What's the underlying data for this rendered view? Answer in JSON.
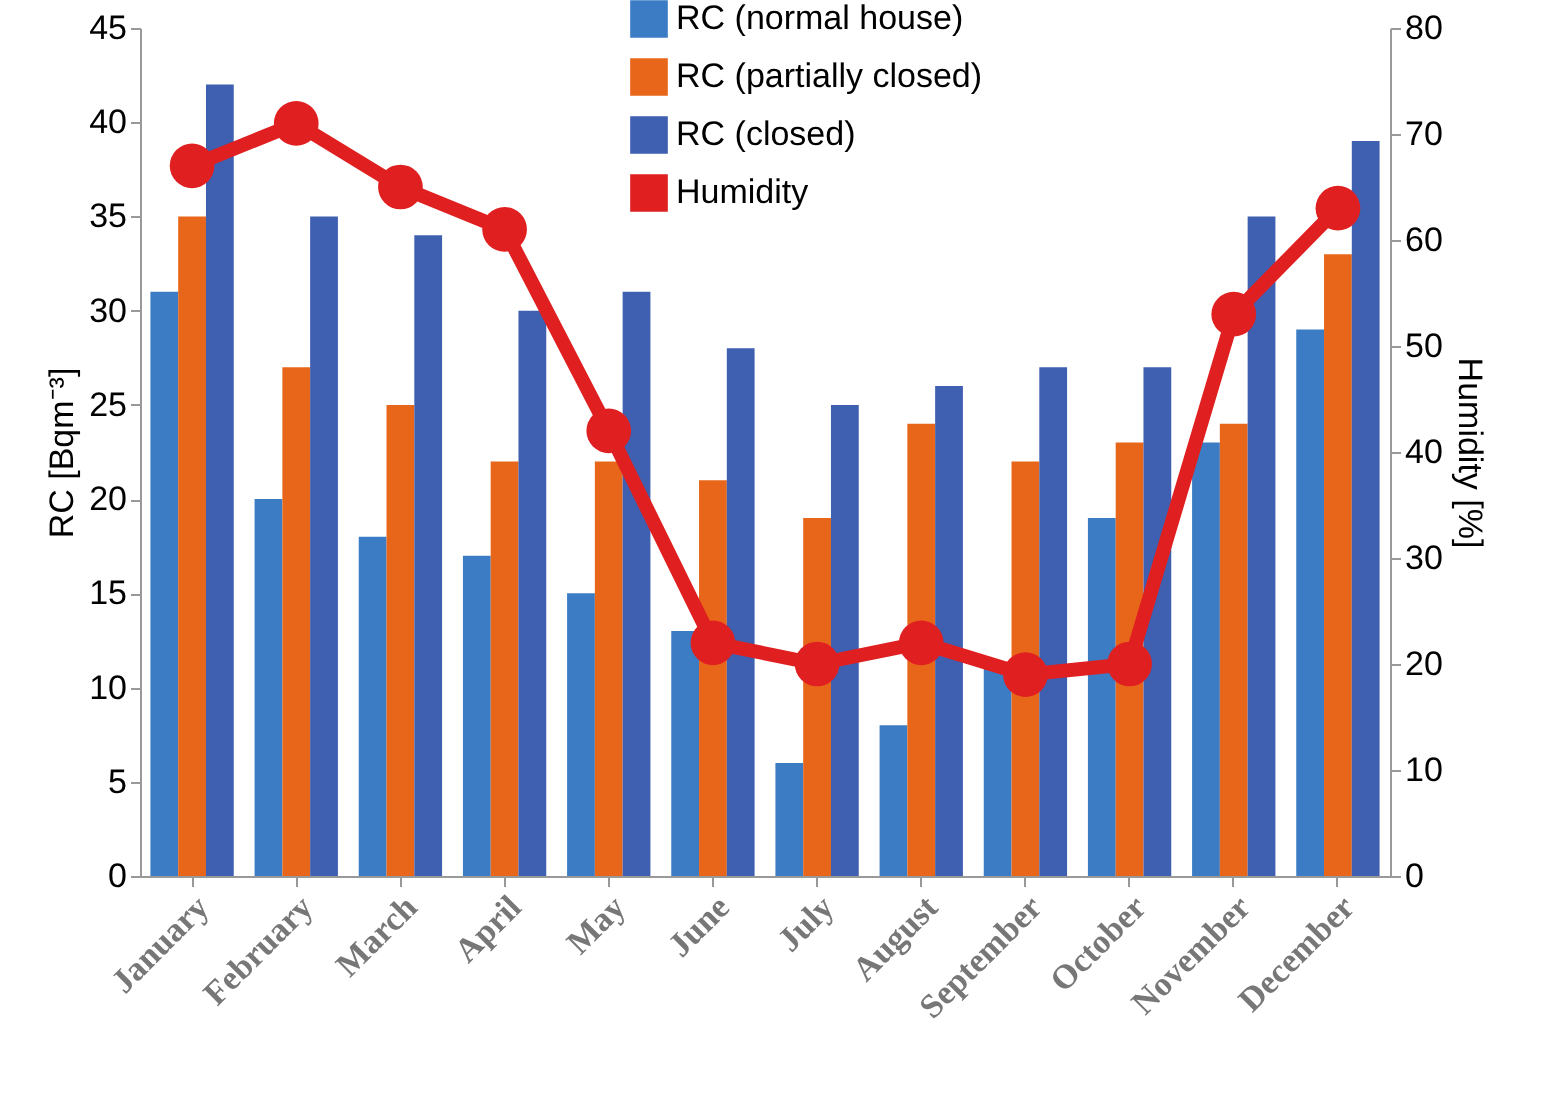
{
  "chart_data": {
    "type": "bar",
    "categories": [
      "January",
      "February",
      "March",
      "April",
      "May",
      "June",
      "July",
      "August",
      "September",
      "October",
      "November",
      "December"
    ],
    "ylabel": "RC [Bqm⁻³]",
    "y2label": "Humidity [%]",
    "ylim": [
      0,
      45
    ],
    "yticks": [
      0,
      5,
      10,
      15,
      20,
      25,
      30,
      35,
      40,
      45
    ],
    "y2lim": [
      0,
      80
    ],
    "y2ticks": [
      0,
      10,
      20,
      30,
      40,
      50,
      60,
      70,
      80
    ],
    "legend": "top",
    "grid": false,
    "marker": "circle",
    "series": [
      {
        "name": "RC (normal house)",
        "color": "#3b7cc4",
        "values": [
          31,
          20,
          18,
          17,
          15,
          13,
          6,
          8,
          11,
          19,
          23,
          29
        ]
      },
      {
        "name": "RC (partially closed)",
        "color": "#e8661a",
        "values": [
          35,
          27,
          25,
          22,
          22,
          21,
          19,
          24,
          22,
          23,
          24,
          33
        ]
      },
      {
        "name": "RC (closed)",
        "color": "#3f5fb0",
        "values": [
          42,
          35,
          34,
          30,
          31,
          28,
          25,
          26,
          27,
          27,
          35,
          39
        ]
      },
      {
        "name": "Humidity",
        "type": "line",
        "axis": "y2",
        "color": "#e02020",
        "values": [
          67,
          71,
          65,
          61,
          42,
          22,
          20,
          22,
          19,
          20,
          53,
          63
        ]
      }
    ]
  }
}
